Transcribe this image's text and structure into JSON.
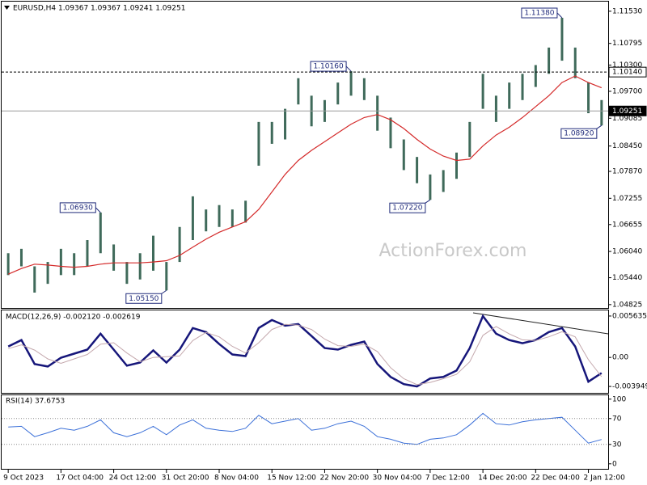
{
  "watermark": "ActionForex.com",
  "chart_data": [
    {
      "type": "hlbar",
      "title": "EURUSD,H4  1.09367 1.09367 1.09241 1.09251",
      "color": "#3f6a5a",
      "categories": [
        "9 Oct 2023",
        null,
        null,
        null,
        "17 Oct 04:00",
        null,
        null,
        null,
        "24 Oct 12:00",
        null,
        null,
        null,
        "31 Oct 20:00",
        null,
        null,
        null,
        "8 Nov 04:00",
        null,
        null,
        null,
        "15 Nov 12:00",
        null,
        null,
        null,
        "22 Nov 20:00",
        null,
        null,
        null,
        "30 Nov 04:00",
        null,
        null,
        null,
        "7 Dec 12:00",
        null,
        null,
        null,
        "14 Dec 20:00",
        null,
        null,
        null,
        "22 Dec 04:00",
        null,
        null,
        null,
        "2 Jan 12:00",
        null
      ],
      "high": [
        1.06,
        1.061,
        1.057,
        1.058,
        1.061,
        1.06,
        1.063,
        1.0693,
        1.062,
        1.058,
        1.06,
        1.064,
        1.058,
        1.066,
        1.073,
        1.07,
        1.071,
        1.07,
        1.072,
        1.09,
        1.09,
        1.093,
        1.1,
        1.096,
        1.095,
        1.099,
        1.1016,
        1.1,
        1.096,
        1.091,
        1.086,
        1.082,
        1.078,
        1.079,
        1.083,
        1.09,
        1.101,
        1.096,
        1.099,
        1.101,
        1.103,
        1.107,
        1.1138,
        1.107,
        1.099,
        1.095
      ],
      "low": [
        1.055,
        1.057,
        1.051,
        1.053,
        1.055,
        1.055,
        1.057,
        1.06,
        1.056,
        1.053,
        1.054,
        1.056,
        1.0515,
        1.058,
        1.063,
        1.065,
        1.066,
        1.066,
        1.067,
        1.08,
        1.085,
        1.086,
        1.094,
        1.089,
        1.09,
        1.094,
        1.096,
        1.095,
        1.088,
        1.084,
        1.079,
        1.076,
        1.0722,
        1.074,
        1.077,
        1.082,
        1.093,
        1.09,
        1.093,
        1.095,
        1.098,
        1.101,
        1.104,
        1.1,
        1.092,
        1.0892
      ],
      "ma": {
        "color": "#d42a2a",
        "values": [
          1.0552,
          1.0565,
          1.0575,
          1.0573,
          1.057,
          1.0568,
          1.057,
          1.0575,
          1.0578,
          1.0578,
          1.0578,
          1.058,
          1.0583,
          1.0595,
          1.0614,
          1.0632,
          1.0648,
          1.066,
          1.0672,
          1.07,
          1.074,
          1.078,
          1.0812,
          1.0835,
          1.0855,
          1.0875,
          1.0895,
          1.091,
          1.0917,
          1.0905,
          1.0885,
          1.086,
          1.0838,
          1.0822,
          1.0812,
          1.0815,
          1.0845,
          1.087,
          1.0888,
          1.091,
          1.0935,
          1.096,
          1.099,
          1.1005,
          1.099,
          1.0978
        ]
      },
      "hlines": [
        {
          "value": 1.1014,
          "label": "1.10140",
          "style": "dashed"
        },
        {
          "value": 1.09251,
          "label": "1.09251",
          "style": "solid"
        }
      ],
      "annotations": [
        {
          "value": 1.1138,
          "label": "1.11380"
        },
        {
          "value": 1.1016,
          "label": "1.10160"
        },
        {
          "value": 1.0693,
          "label": "1.06930"
        },
        {
          "value": 1.0722,
          "label": "1.07220"
        },
        {
          "value": 1.0515,
          "label": "1.05150"
        },
        {
          "value": 1.0892,
          "label": "1.08920"
        }
      ],
      "ylim": [
        1.0473,
        1.1175
      ],
      "yticks": [
        {
          "value": 1.1153,
          "label": "1.11530"
        },
        1.10795,
        {
          "value": 1.103,
          "label": "1.10300"
        },
        {
          "value": 1.097,
          "label": "1.09700"
        },
        1.09085,
        {
          "value": 1.0845,
          "label": "1.08450"
        },
        {
          "value": 1.0787,
          "label": "1.07870"
        },
        1.07255,
        1.06655,
        {
          "value": 1.0604,
          "label": "1.06040"
        },
        {
          "value": 1.0544,
          "label": "1.05440"
        },
        1.04825
      ]
    },
    {
      "type": "line",
      "title": "MACD(12,26,9) -0.002120 -0.002619",
      "series": [
        {
          "color": "#16167a",
          "values": [
            0.00149,
            0.00236,
            -0.0009,
            -0.00123,
            -3e-05,
            0.00051,
            0.00106,
            0.00323,
            0.00106,
            -0.00112,
            -0.00069,
            0.00095,
            -0.00069,
            0.00106,
            0.004,
            0.00345,
            0.00182,
            0.0004,
            0.00019,
            0.004,
            0.00509,
            0.00432,
            0.00454,
            0.00291,
            0.00127,
            0.00106,
            0.00171,
            0.00215,
            -0.0009,
            -0.00265,
            -0.00363,
            -0.00395,
            -0.00286,
            -0.00265,
            -0.00178,
            0.00127,
            0.00563,
            0.00323,
            0.00236,
            0.00193,
            0.00236,
            0.00345,
            0.004,
            0.00149,
            -0.0033,
            -0.00212
          ]
        },
        {
          "color": "#c4a8ad",
          "values": [
            0.0012,
            0.0017,
            0.001,
            -0.0002,
            -0.0008,
            -0.0002,
            0.0004,
            0.0018,
            0.002,
            0.0006,
            -0.0006,
            0.0,
            0.0001,
            0.0002,
            0.0023,
            0.0034,
            0.0028,
            0.0015,
            0.0006,
            0.002,
            0.0038,
            0.0045,
            0.0044,
            0.0038,
            0.0025,
            0.0016,
            0.0015,
            0.0018,
            0.0008,
            -0.0014,
            -0.0029,
            -0.0037,
            -0.0034,
            -0.0029,
            -0.0023,
            -0.0006,
            0.003,
            0.0042,
            0.0032,
            0.0024,
            0.0023,
            0.0028,
            0.0035,
            0.0028,
            -0.0003,
            -0.00262
          ]
        }
      ],
      "ylim": [
        -0.00493,
        0.0064
      ],
      "yticks": [
        0.005635,
        {
          "value": 0,
          "label": "0.00"
        },
        -0.003949
      ]
    },
    {
      "type": "line",
      "title": "RSI(14) 37.6753",
      "color": "#3a6fd8",
      "values": [
        57,
        58,
        42,
        48,
        55,
        52,
        58,
        68,
        48,
        42,
        48,
        58,
        45,
        60,
        68,
        55,
        52,
        50,
        55,
        75,
        62,
        66,
        70,
        52,
        55,
        62,
        66,
        58,
        42,
        38,
        32,
        30,
        38,
        40,
        45,
        60,
        78,
        62,
        60,
        65,
        68,
        70,
        72,
        52,
        32,
        37.6753
      ],
      "levels": [
        30,
        70
      ],
      "ylim": [
        -9,
        106
      ],
      "yticks": [
        100,
        70,
        30,
        0
      ]
    }
  ]
}
